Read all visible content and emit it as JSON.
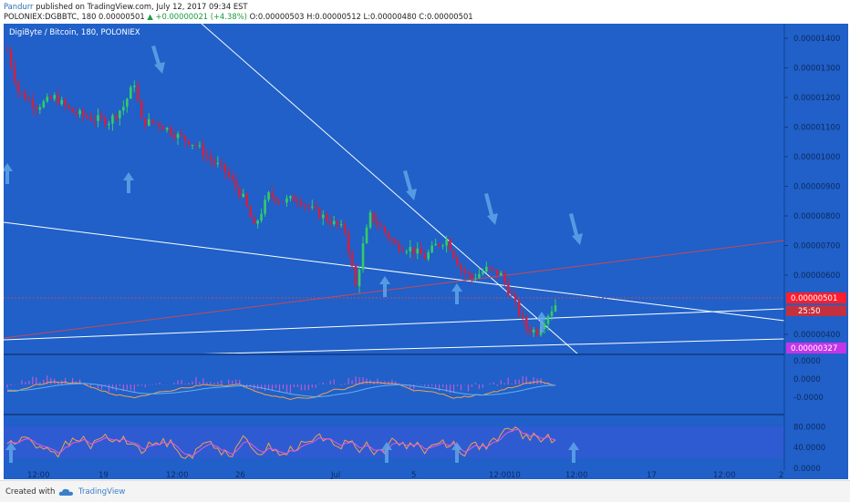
{
  "header": {
    "author": "Pandurr",
    "published": " published on TradingView.com, July 12, 2017 09:34 EST",
    "symbol_line": "POLONIEX:DGBBTC, 180  0.00000501",
    "change": "▲ +0.00000021 (+4.38%)",
    "ohlc": "O:0.00000503 H:0.00000512 L:0.00000480 C:0.00000501"
  },
  "pane_title": "DigiByte / Bitcoin, 180, POLONIEX",
  "footer": {
    "created_with": "Created with",
    "brand": "TradingView"
  },
  "colors": {
    "background": "#2060c8",
    "candle_up": "#33cc66",
    "candle_down": "#cc2244",
    "trendline": "#ffffff",
    "red_line": "#c44a5a",
    "arrow": "#5fa6e8",
    "last_price": "#ff1e2d",
    "magenta_label": "#c435e8"
  },
  "chart_data": [
    {
      "type": "candlestick",
      "title": "DigiByte / Bitcoin, 180, POLONIEX",
      "x_ticks": [
        "12:00",
        "19",
        "12:00",
        "26",
        "Jul",
        "5",
        "12:00",
        "10",
        "12:00",
        "17",
        "12:00",
        "2"
      ],
      "y_ticks": [
        "0.00001400",
        "0.00001300",
        "0.00001200",
        "0.00001100",
        "0.00001000",
        "0.00000900",
        "0.00000800",
        "0.00000700",
        "0.00000600",
        "0.00000400"
      ],
      "ylim": [
        3.2e-06,
        1.44e-05
      ],
      "last_price_label": "0.00000501",
      "countdown_label": "25:50",
      "level_label": "0.00000327",
      "close_path": [
        [
          0,
          1.36e-05
        ],
        [
          3,
          1.22e-05
        ],
        [
          8,
          1.17e-05
        ],
        [
          13,
          1.2e-05
        ],
        [
          18,
          1.15e-05
        ],
        [
          23,
          1.13e-05
        ],
        [
          28,
          1.12e-05
        ],
        [
          32,
          1.17e-05
        ],
        [
          35,
          1.25e-05
        ],
        [
          37,
          1.12e-05
        ],
        [
          42,
          1.11e-05
        ],
        [
          47,
          1.07e-05
        ],
        [
          52,
          1.04e-05
        ],
        [
          55,
          1e-05
        ],
        [
          60,
          9.5e-06
        ],
        [
          65,
          8.6e-06
        ],
        [
          68,
          7.6e-06
        ],
        [
          72,
          8.7e-06
        ],
        [
          76,
          8.5e-06
        ],
        [
          80,
          8.6e-06
        ],
        [
          84,
          8.2e-06
        ],
        [
          88,
          7.9e-06
        ],
        [
          93,
          7.5e-06
        ],
        [
          96,
          5.6e-06
        ],
        [
          98,
          7e-06
        ],
        [
          100,
          8e-06
        ],
        [
          103,
          7.6e-06
        ],
        [
          107,
          7e-06
        ],
        [
          111,
          6.9e-06
        ],
        [
          115,
          6.6e-06
        ],
        [
          118,
          7e-06
        ],
        [
          121,
          7.2e-06
        ],
        [
          125,
          6.2e-06
        ],
        [
          128,
          5.9e-06
        ],
        [
          132,
          6.2e-06
        ],
        [
          136,
          6e-06
        ],
        [
          140,
          5e-06
        ],
        [
          143,
          4.2e-06
        ],
        [
          146,
          4.1e-06
        ],
        [
          149,
          4.7e-06
        ],
        [
          151,
          5.01e-06
        ]
      ]
    },
    {
      "type": "line",
      "title": "",
      "y_ticks": [
        "0.0000",
        "0.0000",
        "-0.0000"
      ],
      "series_colors": [
        "#e35ad8",
        "#f0a050",
        "#5fb0f0"
      ]
    },
    {
      "type": "line",
      "title": "",
      "y_ticks": [
        "80.0000",
        "40.0000",
        "0.0000"
      ],
      "ylim": [
        0,
        100
      ],
      "band": [
        20,
        80
      ]
    }
  ]
}
